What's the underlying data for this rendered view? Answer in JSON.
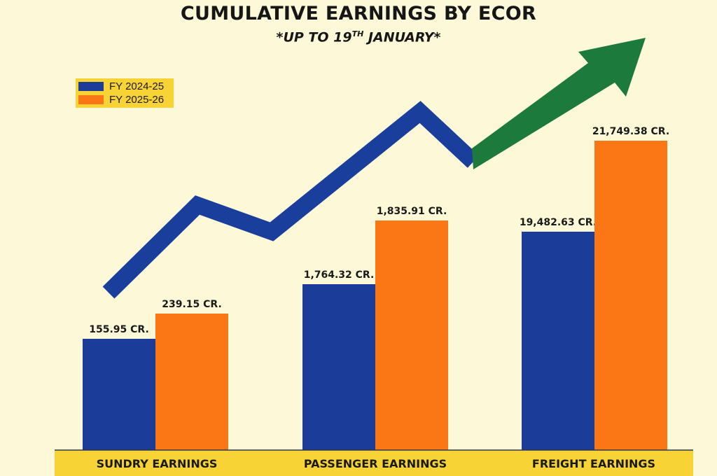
{
  "chart_data": {
    "type": "bar",
    "title": "CUMULATIVE EARNINGS BY ECOR",
    "subtitle": {
      "pre": "*UP TO 19",
      "sup": "TH",
      "post": " JANUARY*"
    },
    "categories": [
      "SUNDRY EARNINGS",
      "PASSENGER EARNINGS",
      "FREIGHT EARNINGS"
    ],
    "series": [
      {
        "name": "FY 2024-25",
        "color": "#1c3c9a",
        "values": [
          155.95,
          1764.32,
          19482.63
        ],
        "labels": [
          "155.95 CR.",
          "1,764.32 CR.",
          "19,482.63 CR."
        ]
      },
      {
        "name": "FY 2025-26",
        "color": "#fb7614",
        "values": [
          239.15,
          1835.91,
          21749.38
        ],
        "labels": [
          "239.15 CR.",
          "1,835.91 CR.",
          "21,749.38 CR."
        ]
      }
    ],
    "legend": "top-left",
    "grid": false,
    "decorations": {
      "trend_arrow_blue": "#1a3e9c",
      "trend_arrow_green": "#1c7a3c",
      "baseline_band": "#f7d335"
    }
  }
}
